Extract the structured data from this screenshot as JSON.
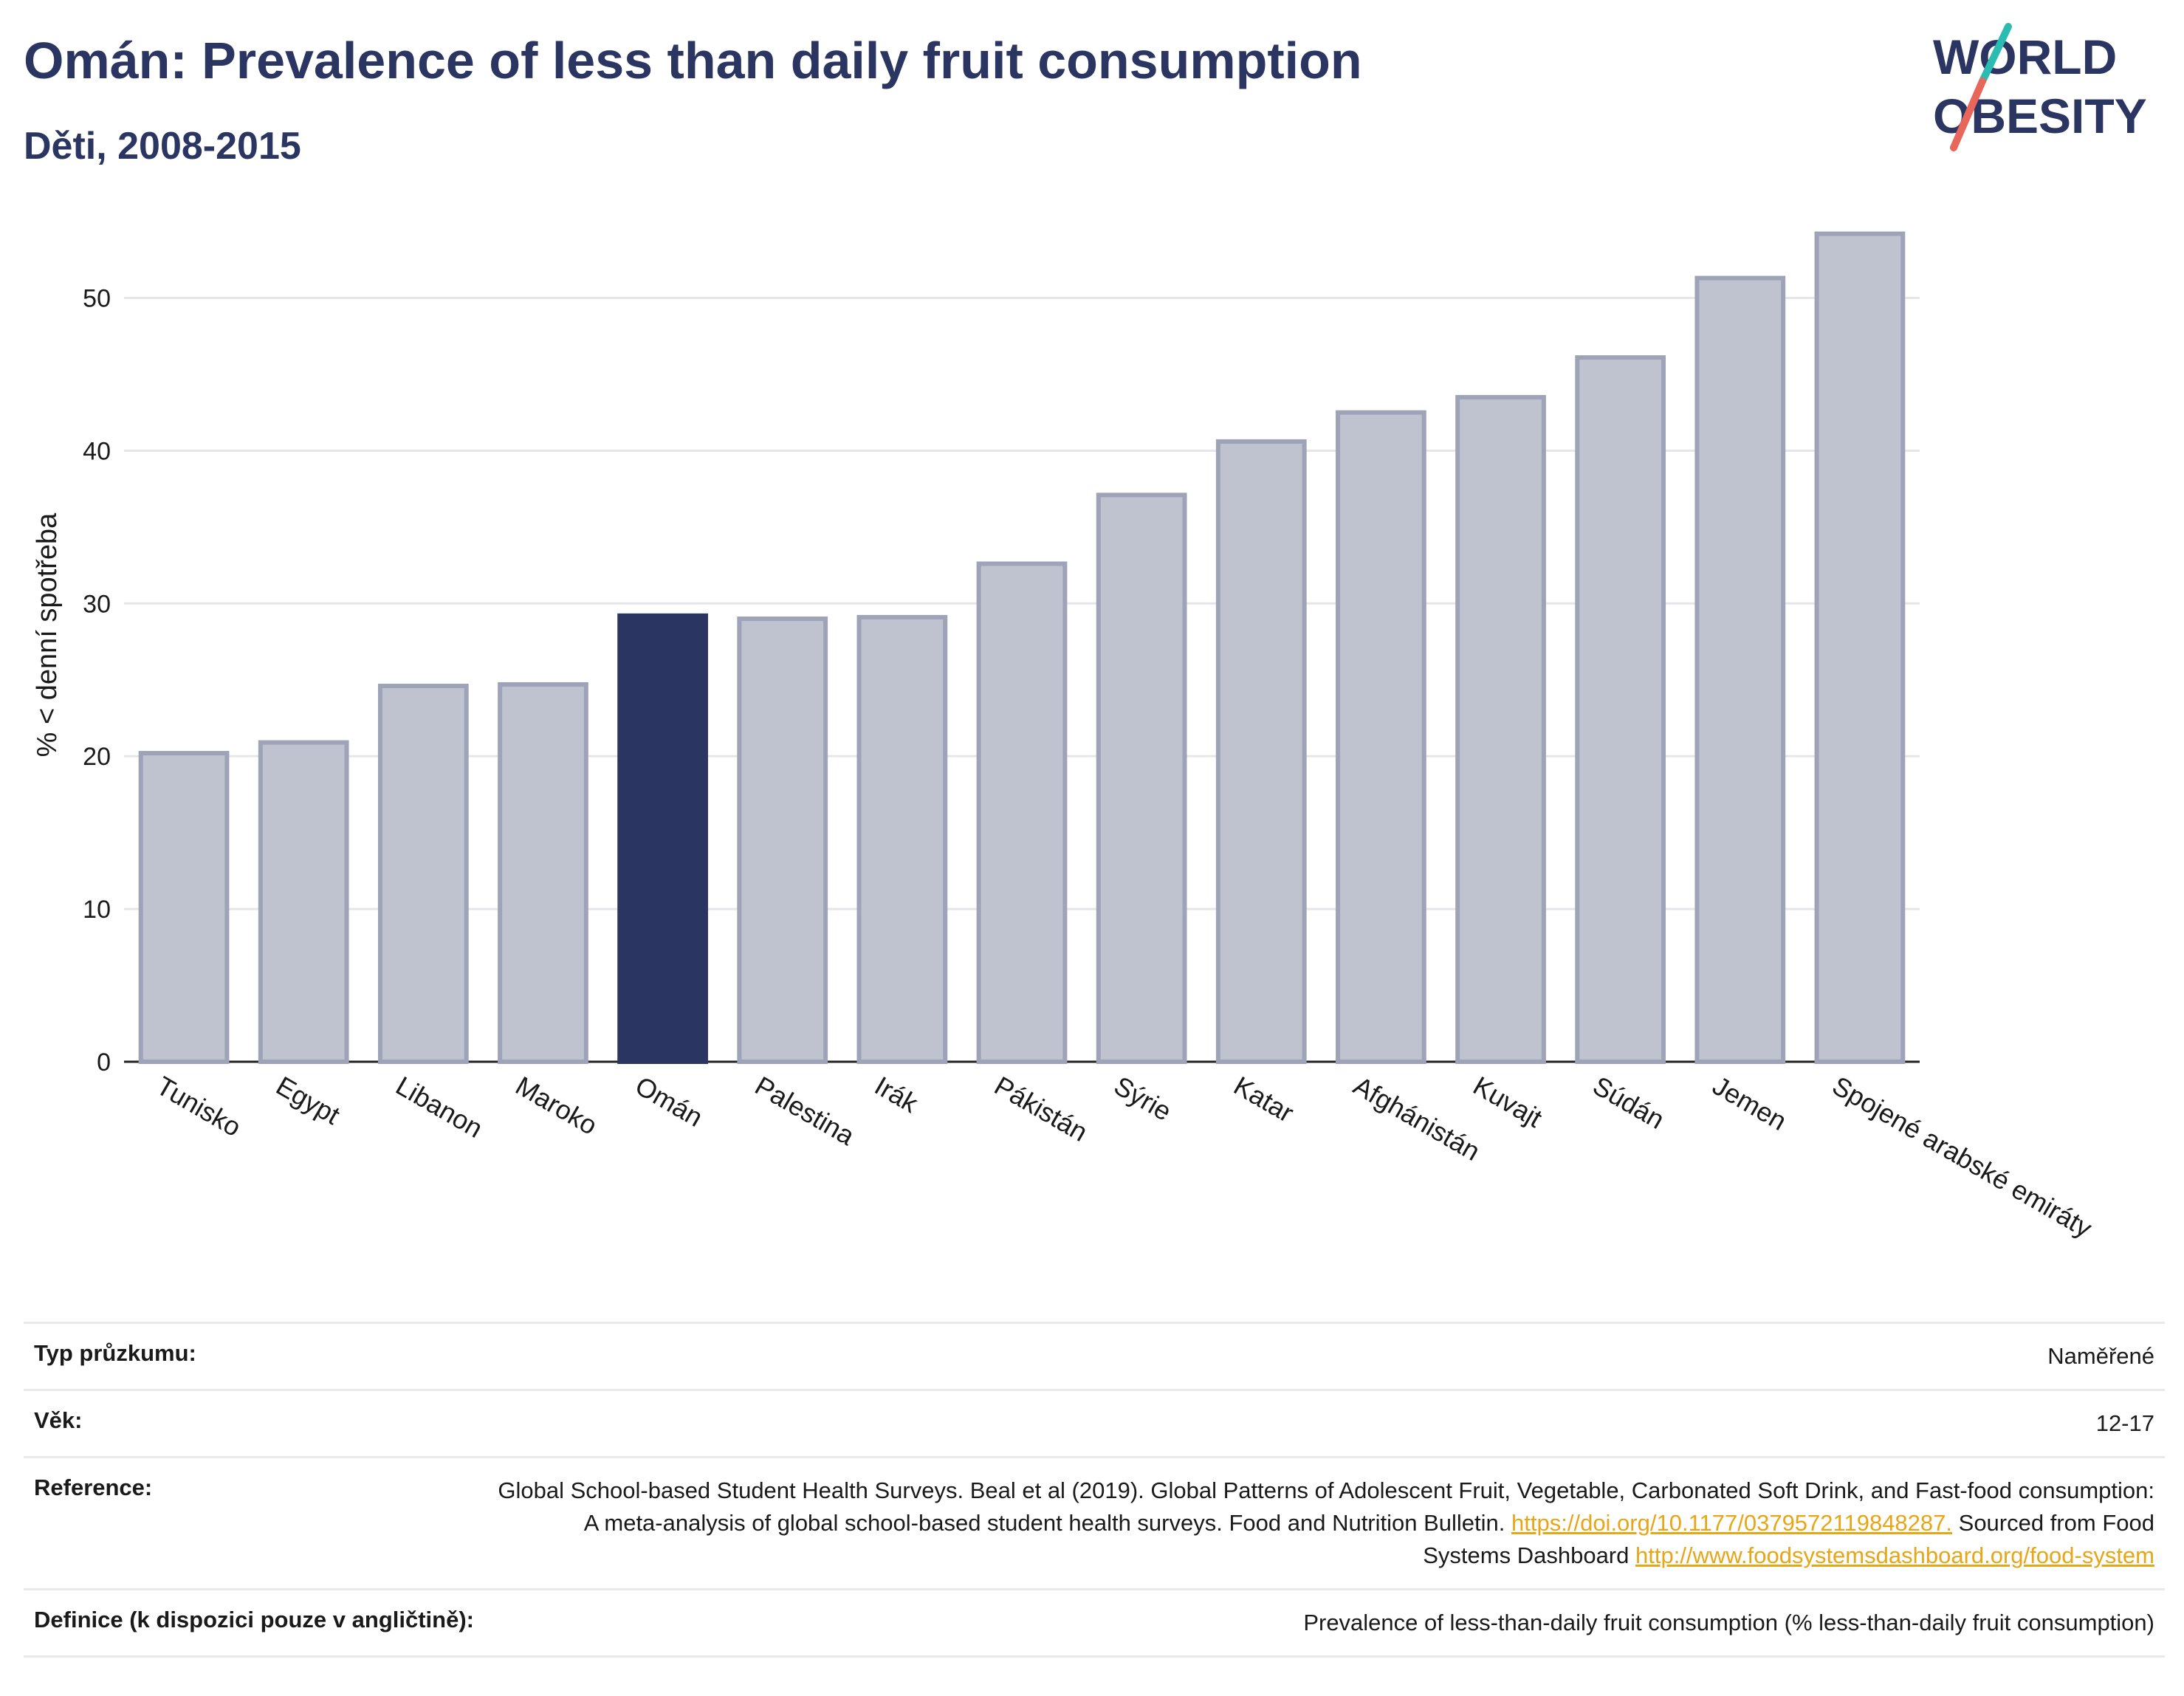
{
  "header": {
    "title": "Omán: Prevalence of less than daily fruit consumption",
    "subtitle": "Děti, 2008-2015"
  },
  "logo": {
    "line1": "WORLD",
    "line2": "OBESITY",
    "accent_teal": "#2bbcb1",
    "accent_red": "#e8665a",
    "text_color": "#2a3561"
  },
  "chart_data": {
    "type": "bar",
    "ylabel": "% < denní spotřeba",
    "ylim": [
      0,
      55
    ],
    "yticks": [
      0,
      10,
      20,
      30,
      40,
      50
    ],
    "grid": true,
    "categories": [
      "Tunisko",
      "Egypt",
      "Libanon",
      "Maroko",
      "Omán",
      "Palestina",
      "Irák",
      "Pákistán",
      "Sýrie",
      "Katar",
      "Afghánistán",
      "Kuvajt",
      "Súdán",
      "Jemen",
      "Spojené arabské emiráty"
    ],
    "values": [
      20.2,
      20.9,
      24.6,
      24.7,
      29.2,
      29.0,
      29.1,
      32.6,
      37.1,
      40.6,
      42.5,
      43.5,
      46.1,
      51.3,
      54.2
    ],
    "highlight": "Omán",
    "colors": {
      "bar": "#bfc2cf",
      "bar_border": "#9ea3b8",
      "highlight": "#2a3561"
    }
  },
  "meta": [
    {
      "key": "Typ průzkumu:",
      "value": "Naměřené"
    },
    {
      "key": "Věk:",
      "value": "12-17"
    },
    {
      "key": "Reference:",
      "text1": "Global School-based Student Health Surveys. Beal et al (2019). Global Patterns of Adolescent Fruit, Vegetable, Carbonated Soft Drink, and Fast-food consumption: A meta-analysis of global school-based student health surveys. Food and Nutrition Bulletin.",
      "link1": "https://doi.org/10.1177/0379572119848287.",
      "text2": "Sourced from Food Systems Dashboard",
      "link2": "http://www.foodsystemsdashboard.org/food-system"
    },
    {
      "key": "Definice (k dispozici pouze v angličtině):",
      "value": "Prevalence of less-than-daily fruit consumption (% less-than-daily fruit consumption)"
    }
  ]
}
